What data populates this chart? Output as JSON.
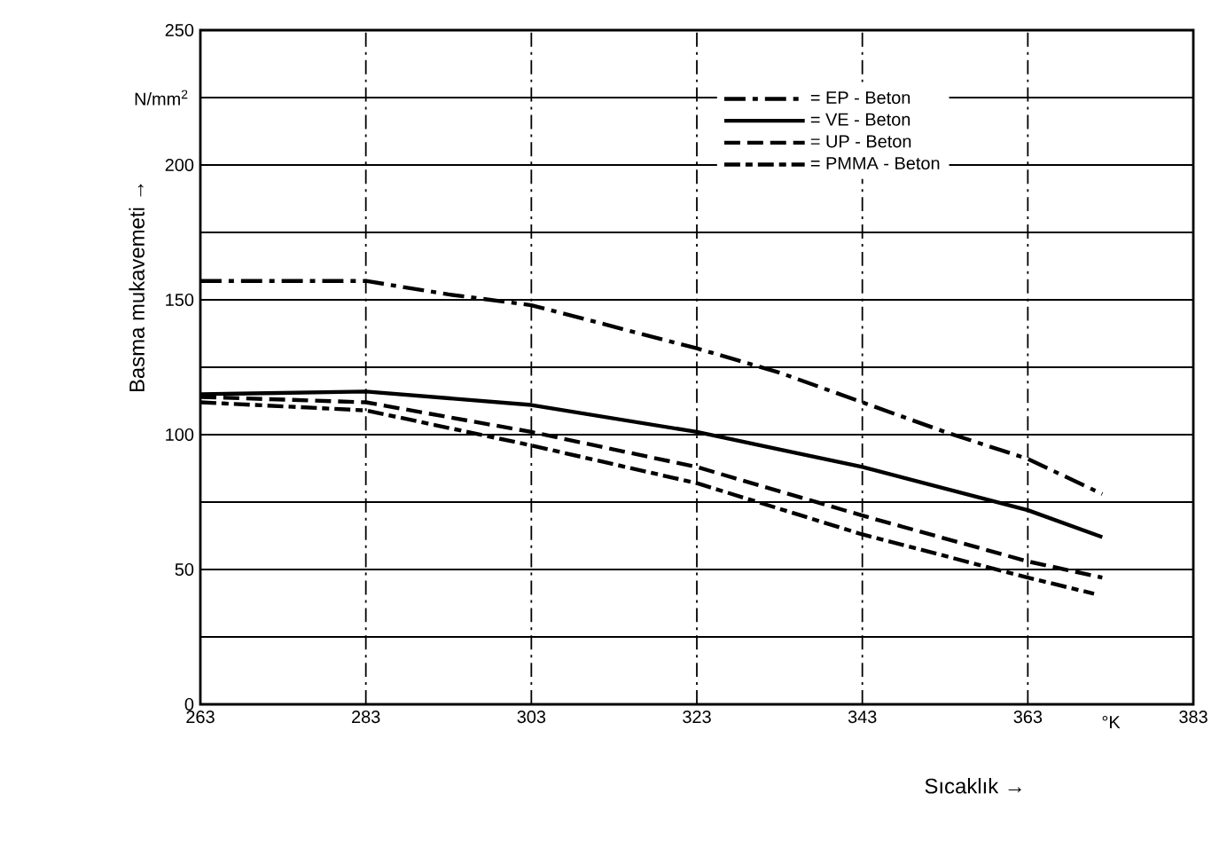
{
  "chart_data": {
    "type": "line",
    "xlabel": "Sıcaklık →",
    "ylabel": "Basma mukavemeti →",
    "annotations": [
      "°K",
      "N/mm$^{2}$"
    ],
    "xlim": [
      263,
      383
    ],
    "ylim": [
      0,
      250
    ],
    "xticks": [
      263,
      283,
      303,
      323,
      343,
      363,
      383
    ],
    "yticks": [
      0,
      {
        "value": 25,
        "label": null
      },
      50,
      {
        "value": 75,
        "label": null
      },
      100,
      {
        "value": 125,
        "label": null
      },
      150,
      {
        "value": 175,
        "label": null
      },
      200,
      {
        "value": 225,
        "label": null
      },
      250
    ],
    "grid": true,
    "legend": "top right",
    "marker": "none",
    "series": [
      {
        "name": "= EP - Beton",
        "color": "#000000",
        "line_style": "dashdot",
        "x": [
          263,
          283,
          293,
          303,
          323,
          333,
          343,
          353,
          363,
          372
        ],
        "values": [
          157,
          157,
          152,
          148,
          132,
          123,
          112,
          101,
          91,
          78
        ]
      },
      {
        "name": "= VE - Beton",
        "color": "#000000",
        "line_style": "solid",
        "x": [
          263,
          283,
          303,
          323,
          343,
          363,
          372
        ],
        "values": [
          115,
          116,
          111,
          101,
          88,
          72,
          62
        ]
      },
      {
        "name": "= UP - Beton",
        "color": "#000000",
        "line_style": "dashed",
        "x": [
          263,
          283,
          303,
          323,
          343,
          363,
          372
        ],
        "values": [
          114,
          112,
          101,
          88,
          70,
          53,
          47
        ]
      },
      {
        "name": "= PMMA - Beton",
        "color": "#000000",
        "line_style": "dotted",
        "x": [
          263,
          283,
          303,
          323,
          343,
          363,
          371
        ],
        "values": [
          112,
          109,
          96,
          82,
          63,
          47,
          41
        ]
      }
    ]
  }
}
